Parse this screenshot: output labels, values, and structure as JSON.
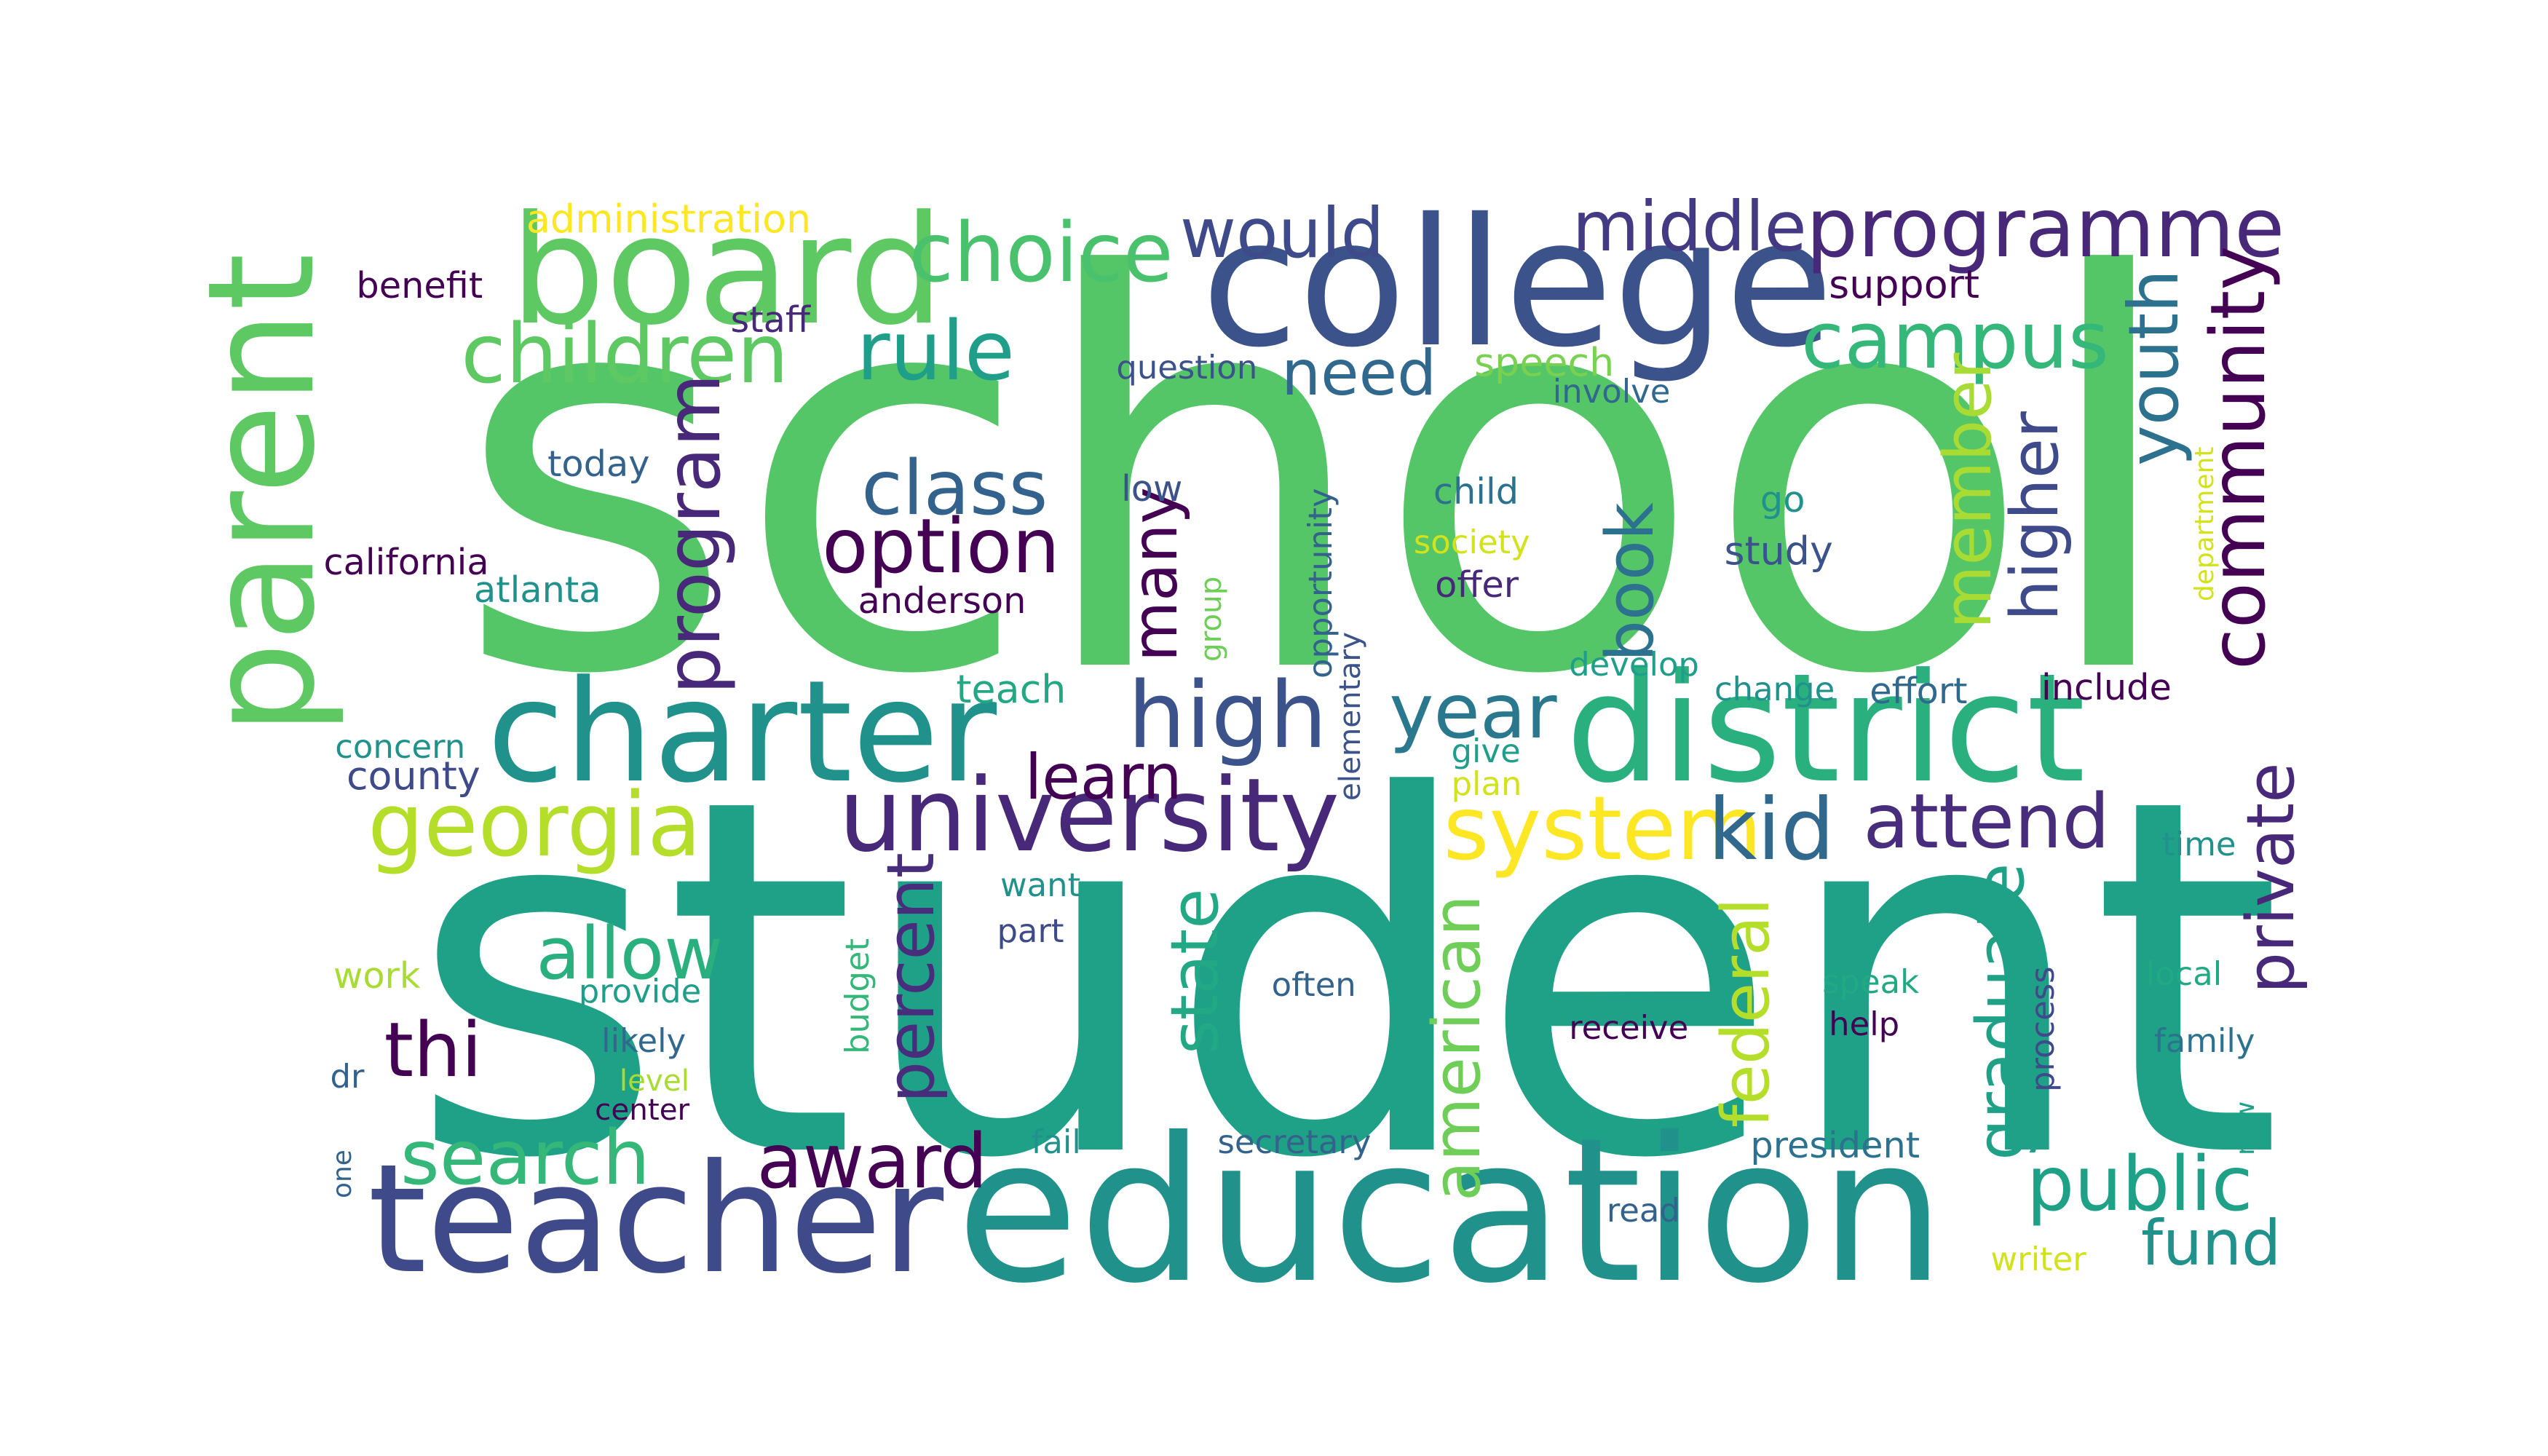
{
  "palette": {
    "dark_purple": "#440154",
    "indigo": "#3b528b",
    "slate_blue": "#33638d",
    "teal_blue": "#2c728e",
    "teal": "#21918c",
    "sea_green": "#1fa187",
    "green": "#5ec962",
    "light_green": "#7ad151",
    "yellow_green": "#b5de2b",
    "yellow": "#fde725"
  },
  "words": [
    {
      "text": "school",
      "color": "#55c667"
    },
    {
      "text": "student",
      "color": "#1fa187"
    },
    {
      "text": "college",
      "color": "#3b528b"
    },
    {
      "text": "education",
      "color": "#21918c"
    },
    {
      "text": "board",
      "color": "#5ec962"
    },
    {
      "text": "parent",
      "color": "#5ec962"
    },
    {
      "text": "teacher",
      "color": "#3e4a89"
    },
    {
      "text": "district",
      "color": "#2ab07f"
    },
    {
      "text": "charter",
      "color": "#21918c"
    },
    {
      "text": "university",
      "color": "#482878"
    },
    {
      "text": "programme",
      "color": "#482878"
    },
    {
      "text": "choice",
      "color": "#4ac16d"
    },
    {
      "text": "children",
      "color": "#5ec962"
    },
    {
      "text": "rule",
      "color": "#1f9e89"
    },
    {
      "text": "would",
      "color": "#3e4a89"
    },
    {
      "text": "middle",
      "color": "#443983"
    },
    {
      "text": "need",
      "color": "#31688e"
    },
    {
      "text": "campus",
      "color": "#35b779"
    },
    {
      "text": "community",
      "color": "#440154"
    },
    {
      "text": "youth",
      "color": "#2c728e"
    },
    {
      "text": "class",
      "color": "#33638d"
    },
    {
      "text": "option",
      "color": "#440154"
    },
    {
      "text": "program",
      "color": "#482878"
    },
    {
      "text": "high",
      "color": "#3b528b"
    },
    {
      "text": "year",
      "color": "#2a788e"
    },
    {
      "text": "many",
      "color": "#440154"
    },
    {
      "text": "book",
      "color": "#2c728e"
    },
    {
      "text": "member",
      "color": "#a8db34"
    },
    {
      "text": "higher",
      "color": "#3e4a89"
    },
    {
      "text": "georgia",
      "color": "#b5de2b"
    },
    {
      "text": "learn",
      "color": "#440154"
    },
    {
      "text": "system",
      "color": "#fde725"
    },
    {
      "text": "kid",
      "color": "#31688e"
    },
    {
      "text": "attend",
      "color": "#472d7b"
    },
    {
      "text": "private",
      "color": "#482878"
    },
    {
      "text": "allow",
      "color": "#2ab07f"
    },
    {
      "text": "percent",
      "color": "#472d7b"
    },
    {
      "text": "state",
      "color": "#22a884"
    },
    {
      "text": "american",
      "color": "#6ece58"
    },
    {
      "text": "federal",
      "color": "#b5de2b"
    },
    {
      "text": "graduate",
      "color": "#1fa187"
    },
    {
      "text": "thi",
      "color": "#440154"
    },
    {
      "text": "search",
      "color": "#35b779"
    },
    {
      "text": "award",
      "color": "#440154"
    },
    {
      "text": "public",
      "color": "#1fa187"
    },
    {
      "text": "fund",
      "color": "#21918c"
    },
    {
      "text": "administration",
      "color": "#fde725"
    },
    {
      "text": "benefit",
      "color": "#440154"
    },
    {
      "text": "staff",
      "color": "#482878"
    },
    {
      "text": "question",
      "color": "#3b528b"
    },
    {
      "text": "speech",
      "color": "#7ad151"
    },
    {
      "text": "involve",
      "color": "#31688e"
    },
    {
      "text": "support",
      "color": "#440154"
    },
    {
      "text": "today",
      "color": "#33638d"
    },
    {
      "text": "low",
      "color": "#3b528b"
    },
    {
      "text": "child",
      "color": "#2c728e"
    },
    {
      "text": "go",
      "color": "#21918c"
    },
    {
      "text": "society",
      "color": "#d2e21b"
    },
    {
      "text": "study",
      "color": "#3b528b"
    },
    {
      "text": "california",
      "color": "#440154"
    },
    {
      "text": "atlanta",
      "color": "#21918c"
    },
    {
      "text": "anderson",
      "color": "#440154"
    },
    {
      "text": "offer",
      "color": "#482878"
    },
    {
      "text": "opportunity",
      "color": "#33638d"
    },
    {
      "text": "group",
      "color": "#6ece58"
    },
    {
      "text": "department",
      "color": "#d2e21b"
    },
    {
      "text": "teach",
      "color": "#22a884"
    },
    {
      "text": "develop",
      "color": "#1f9e89"
    },
    {
      "text": "change",
      "color": "#21918c"
    },
    {
      "text": "effort",
      "color": "#31688e"
    },
    {
      "text": "include",
      "color": "#440154"
    },
    {
      "text": "elementary",
      "color": "#3b528b"
    },
    {
      "text": "concern",
      "color": "#21918c"
    },
    {
      "text": "county",
      "color": "#3e4a89"
    },
    {
      "text": "give",
      "color": "#1f9e89"
    },
    {
      "text": "plan",
      "color": "#d2e21b"
    },
    {
      "text": "time",
      "color": "#21918c"
    },
    {
      "text": "want",
      "color": "#21918c"
    },
    {
      "text": "part",
      "color": "#3e4a89"
    },
    {
      "text": "budget",
      "color": "#35b779"
    },
    {
      "text": "work",
      "color": "#a8db34"
    },
    {
      "text": "provide",
      "color": "#1f9e89"
    },
    {
      "text": "often",
      "color": "#33638d"
    },
    {
      "text": "speak",
      "color": "#22a884"
    },
    {
      "text": "process",
      "color": "#3e4a89"
    },
    {
      "text": "local",
      "color": "#22a884"
    },
    {
      "text": "likely",
      "color": "#31688e"
    },
    {
      "text": "receive",
      "color": "#440154"
    },
    {
      "text": "help",
      "color": "#440154"
    },
    {
      "text": "family",
      "color": "#2c728e"
    },
    {
      "text": "dr",
      "color": "#33638d"
    },
    {
      "text": "level",
      "color": "#a8db34"
    },
    {
      "text": "center",
      "color": "#440154"
    },
    {
      "text": "new",
      "color": "#1fa187"
    },
    {
      "text": "secretary",
      "color": "#33638d"
    },
    {
      "text": "president",
      "color": "#2c728e"
    },
    {
      "text": "one",
      "color": "#33638d"
    },
    {
      "text": "fail",
      "color": "#21918c"
    },
    {
      "text": "read",
      "color": "#33638d"
    },
    {
      "text": "writer",
      "color": "#d2e21b"
    }
  ]
}
